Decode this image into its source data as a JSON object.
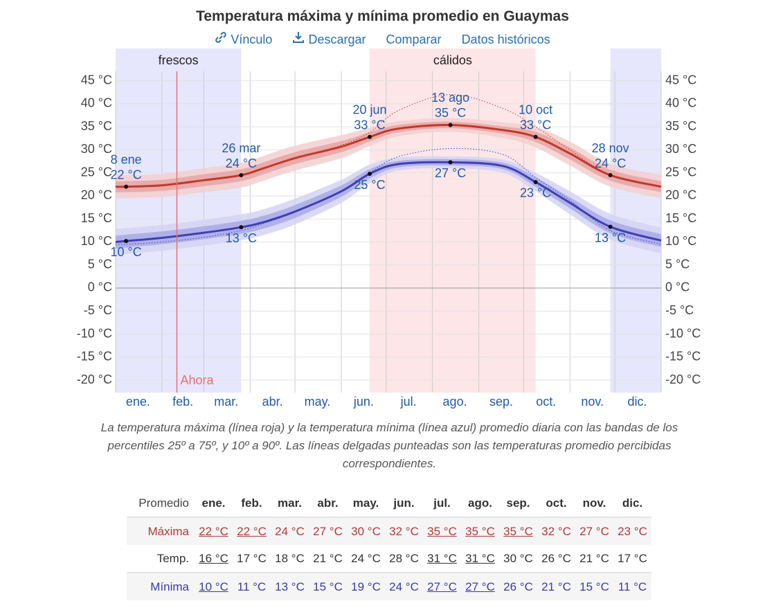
{
  "title": "Temperatura máxima y mínima promedio en Guaymas",
  "links": [
    "Vínculo",
    "Descargar",
    "Comparar",
    "Datos históricos"
  ],
  "chart_data": {
    "type": "line",
    "regions": [
      {
        "label": "frescos",
        "start": 1,
        "end": 85,
        "color": "#e6e6fc"
      },
      {
        "label": "cálidos",
        "start": 171,
        "end": 282,
        "color": "#fde6e8"
      },
      {
        "start": 332,
        "end": 366,
        "color": "#e6e6fc"
      }
    ],
    "xlim": [
      1,
      366
    ],
    "xgrid": [
      1,
      32,
      60,
      91,
      121,
      152,
      182,
      213,
      244,
      274,
      305,
      335,
      366
    ],
    "xticks": [
      {
        "value": 16,
        "label": "ene."
      },
      {
        "value": 46,
        "label": "feb."
      },
      {
        "value": 75,
        "label": "mar."
      },
      {
        "value": 106,
        "label": "abr."
      },
      {
        "value": 136,
        "label": "may."
      },
      {
        "value": 167,
        "label": "jun."
      },
      {
        "value": 197,
        "label": "jul."
      },
      {
        "value": 228,
        "label": "ago."
      },
      {
        "value": 259,
        "label": "sep."
      },
      {
        "value": 289,
        "label": "oct."
      },
      {
        "value": 320,
        "label": "nov."
      },
      {
        "value": 350,
        "label": "dic."
      }
    ],
    "ylim": [
      -22.7,
      47.5
    ],
    "yticks": [
      {
        "value": 45,
        "label": "45 °C"
      },
      {
        "value": 40,
        "label": "40 °C"
      },
      {
        "value": 35,
        "label": "35 °C"
      },
      {
        "value": 30,
        "label": "30 °C"
      },
      {
        "value": 25,
        "label": "25 °C"
      },
      {
        "value": 20,
        "label": "20 °C"
      },
      {
        "value": 15,
        "label": "15 °C"
      },
      {
        "value": 10,
        "label": "10 °C"
      },
      {
        "value": 5,
        "label": "5 °C"
      },
      {
        "value": 0,
        "label": "0 °C"
      },
      {
        "value": -5,
        "label": "-5 °C"
      },
      {
        "value": -10,
        "label": "-10 °C"
      },
      {
        "value": -15,
        "label": "-15 °C"
      },
      {
        "value": -20,
        "label": "-20 °C"
      }
    ],
    "grid": true,
    "now": {
      "x": 42,
      "label": "Ahora"
    },
    "x": [
      1,
      8,
      32,
      60,
      85,
      100,
      121,
      152,
      171,
      190,
      225,
      260,
      282,
      305,
      332,
      366
    ],
    "series": [
      {
        "color": "#c0392b",
        "band_inner": "#e8a3a3",
        "band_outer": "#f3cfcf",
        "values": [
          22,
          22,
          22.3,
          23.4,
          24.5,
          26,
          28.2,
          30.7,
          32.8,
          34.6,
          35.4,
          34.3,
          32.8,
          29.2,
          24.5,
          22
        ],
        "p10": [
          19.5,
          19.5,
          19.8,
          20.8,
          21.8,
          23.3,
          25.5,
          28.2,
          30.8,
          32.9,
          33.9,
          32.6,
          30.5,
          26.6,
          22,
          19.5
        ],
        "p25": [
          20.8,
          20.8,
          21.1,
          22.1,
          23.2,
          24.7,
          26.9,
          29.5,
          31.8,
          33.8,
          34.7,
          33.5,
          31.7,
          27.9,
          23.3,
          20.8
        ],
        "p75": [
          23.2,
          23.2,
          23.5,
          24.7,
          25.8,
          27.3,
          29.5,
          31.9,
          33.8,
          35.4,
          36.1,
          35.1,
          33.9,
          30.5,
          25.7,
          23.2
        ],
        "p90": [
          24.5,
          24.5,
          24.8,
          26,
          27.2,
          28.7,
          30.9,
          33.2,
          34.8,
          36.2,
          36.9,
          36,
          35,
          31.8,
          27,
          24.5
        ],
        "feels_like": [
          22,
          22,
          22.3,
          23.4,
          24.5,
          26,
          28.2,
          31,
          33.8,
          38.5,
          42,
          39,
          35,
          30,
          24.5,
          22
        ]
      },
      {
        "color": "#3f3fb5",
        "band_inner": "#a9a9e6",
        "band_outer": "#d3d3f3",
        "values": [
          10,
          10.2,
          10.9,
          12,
          13.2,
          14.3,
          16.6,
          21,
          24.8,
          26.9,
          27.3,
          26.5,
          23,
          18.5,
          13.3,
          10.3
        ],
        "p10": [
          7.2,
          7.4,
          8.1,
          9.2,
          10.4,
          11.5,
          13.8,
          18.5,
          22.8,
          25.5,
          26,
          25,
          21,
          16,
          10.5,
          7.5
        ],
        "p25": [
          8.6,
          8.8,
          9.5,
          10.6,
          11.8,
          12.9,
          15.2,
          19.8,
          23.8,
          26.2,
          26.6,
          25.8,
          22,
          17.3,
          11.9,
          8.9
        ],
        "p75": [
          11.4,
          11.6,
          12.3,
          13.4,
          14.6,
          15.7,
          18,
          22.3,
          25.8,
          27.6,
          28,
          27.2,
          24,
          19.7,
          14.7,
          11.7
        ],
        "p90": [
          12.8,
          13,
          13.7,
          14.8,
          16,
          17.1,
          19.4,
          23.5,
          26.8,
          28.3,
          28.6,
          27.9,
          25,
          21,
          16.1,
          13.1
        ],
        "feels_like": [
          9.5,
          9.5,
          10,
          11,
          12.5,
          14,
          16.5,
          21,
          25,
          28.5,
          30.3,
          29,
          24,
          19,
          12.5,
          9.5
        ]
      }
    ],
    "annotations": [
      {
        "x": 8,
        "y": 22,
        "date": "8 ene",
        "label": "22 °C",
        "position": "above"
      },
      {
        "x": 85,
        "y": 24.5,
        "date": "26 mar",
        "label": "24 °C",
        "position": "above"
      },
      {
        "x": 171,
        "y": 32.8,
        "date": "20 jun",
        "label": "33 °C",
        "position": "above"
      },
      {
        "x": 225,
        "y": 35.4,
        "date": "13 ago",
        "label": "35 °C",
        "position": "above"
      },
      {
        "x": 282,
        "y": 32.8,
        "date": "10 oct",
        "label": "33 °C",
        "position": "above"
      },
      {
        "x": 332,
        "y": 24.5,
        "date": "28 nov",
        "label": "24 °C",
        "position": "above"
      },
      {
        "x": 8,
        "y": 10.2,
        "label": "10 °C",
        "position": "below"
      },
      {
        "x": 85,
        "y": 13.2,
        "label": "13 °C",
        "position": "below"
      },
      {
        "x": 171,
        "y": 24.8,
        "label": "25 °C",
        "position": "below"
      },
      {
        "x": 225,
        "y": 27.3,
        "label": "27 °C",
        "position": "below"
      },
      {
        "x": 282,
        "y": 23,
        "label": "23 °C",
        "position": "below"
      },
      {
        "x": 332,
        "y": 13.3,
        "label": "13 °C",
        "position": "below"
      }
    ]
  },
  "caption": "La temperatura máxima (línea roja) y la temperatura mínima (línea azul) promedio diaria con las bandas de los percentiles 25º a 75º, y 10º a 90º. Las líneas delgadas punteadas son las temperaturas promedio percibidas correspondientes.",
  "table": {
    "header": [
      "Promedio",
      "ene.",
      "feb.",
      "mar.",
      "abr.",
      "may.",
      "jun.",
      "jul.",
      "ago.",
      "sep.",
      "oct.",
      "nov.",
      "dic."
    ],
    "rows": [
      {
        "label": "Máxima",
        "color": "#b03a3a",
        "shaded": true,
        "underlined": [
          0,
          1,
          6,
          7,
          8
        ],
        "cells": [
          "22 °C",
          "22 °C",
          "24 °C",
          "27 °C",
          "30 °C",
          "32 °C",
          "35 °C",
          "35 °C",
          "35 °C",
          "32 °C",
          "27 °C",
          "23 °C"
        ]
      },
      {
        "label": "Temp.",
        "color": "#333333",
        "shaded": false,
        "underlined": [
          0,
          6,
          7
        ],
        "cells": [
          "16 °C",
          "17 °C",
          "18 °C",
          "21 °C",
          "24 °C",
          "28 °C",
          "31 °C",
          "31 °C",
          "30 °C",
          "26 °C",
          "21 °C",
          "17 °C"
        ]
      },
      {
        "label": "Mínima",
        "color": "#3a3aa8",
        "shaded": true,
        "underlined": [
          0,
          6,
          7
        ],
        "cells": [
          "10 °C",
          "11 °C",
          "13 °C",
          "15 °C",
          "19 °C",
          "24 °C",
          "27 °C",
          "27 °C",
          "26 °C",
          "21 °C",
          "15 °C",
          "11 °C"
        ]
      }
    ]
  }
}
